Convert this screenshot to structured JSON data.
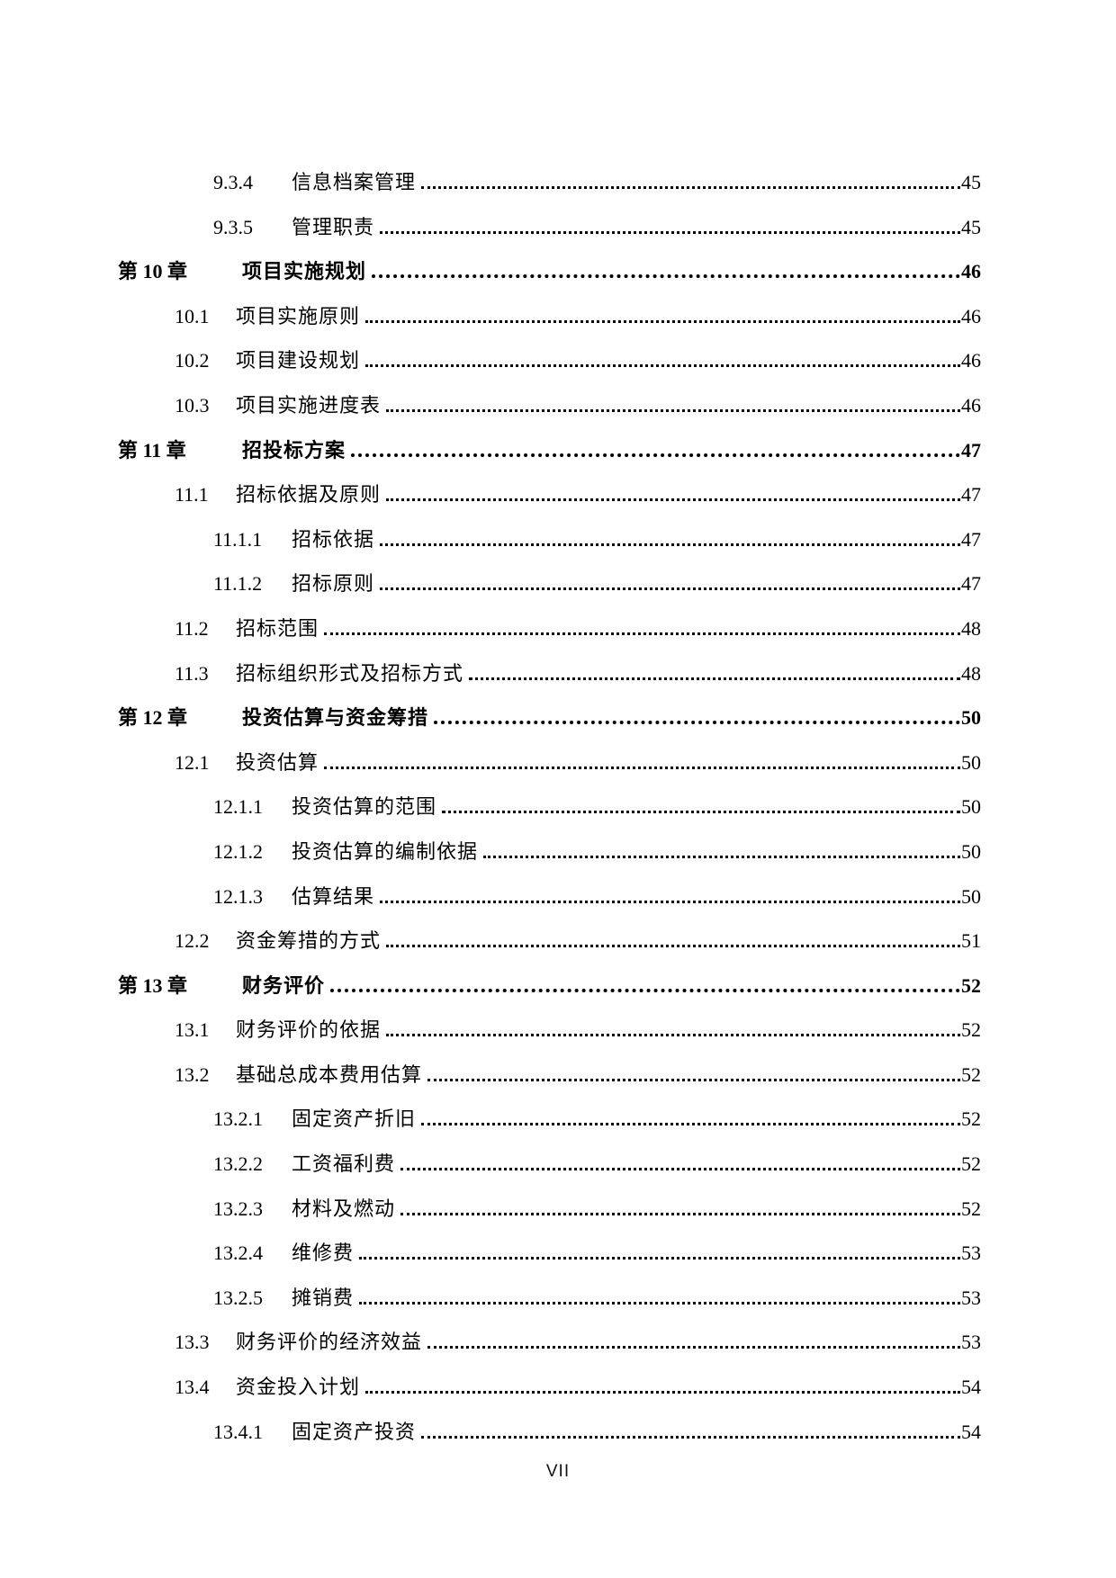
{
  "document": {
    "background_color": "#ffffff",
    "text_color": "#000000",
    "footer_page_label": "VII"
  },
  "toc": {
    "entries": [
      {
        "level": 3,
        "num": "9.3.4",
        "title": "信息档案管理",
        "page": "45"
      },
      {
        "level": 3,
        "num": "9.3.5",
        "title": "管理职责",
        "page": "45"
      },
      {
        "level": 1,
        "num": "第 10 章",
        "title": "项目实施规划",
        "page": "46"
      },
      {
        "level": 2,
        "num": "10.1",
        "title": "项目实施原则",
        "page": "46"
      },
      {
        "level": 2,
        "num": "10.2",
        "title": "项目建设规划",
        "page": "46"
      },
      {
        "level": 2,
        "num": "10.3",
        "title": "项目实施进度表",
        "page": "46"
      },
      {
        "level": 1,
        "num": "第 11 章",
        "title": "招投标方案",
        "page": "47"
      },
      {
        "level": 2,
        "num": "11.1",
        "title": "招标依据及原则",
        "page": "47"
      },
      {
        "level": 3,
        "num": "11.1.1",
        "title": "招标依据",
        "page": "47"
      },
      {
        "level": 3,
        "num": "11.1.2",
        "title": "招标原则",
        "page": "47"
      },
      {
        "level": 2,
        "num": "11.2",
        "title": "招标范围",
        "page": "48"
      },
      {
        "level": 2,
        "num": "11.3",
        "title": "招标组织形式及招标方式",
        "page": "48"
      },
      {
        "level": 1,
        "num": "第 12 章",
        "title": "投资估算与资金筹措",
        "page": "50"
      },
      {
        "level": 2,
        "num": "12.1",
        "title": "投资估算",
        "page": "50"
      },
      {
        "level": 3,
        "num": "12.1.1",
        "title": "投资估算的范围",
        "page": "50"
      },
      {
        "level": 3,
        "num": "12.1.2",
        "title": "投资估算的编制依据",
        "page": "50"
      },
      {
        "level": 3,
        "num": "12.1.3",
        "title": "估算结果",
        "page": "50"
      },
      {
        "level": 2,
        "num": "12.2",
        "title": "资金筹措的方式",
        "page": "51"
      },
      {
        "level": 1,
        "num": "第 13 章",
        "title": "财务评价",
        "page": "52"
      },
      {
        "level": 2,
        "num": "13.1",
        "title": "财务评价的依据",
        "page": "52"
      },
      {
        "level": 2,
        "num": "13.2",
        "title": "基础总成本费用估算",
        "page": "52"
      },
      {
        "level": 3,
        "num": "13.2.1",
        "title": "固定资产折旧",
        "page": "52"
      },
      {
        "level": 3,
        "num": "13.2.2",
        "title": "工资福利费",
        "page": "52"
      },
      {
        "level": 3,
        "num": "13.2.3",
        "title": "材料及燃动",
        "page": "52"
      },
      {
        "level": 3,
        "num": "13.2.4",
        "title": "维修费",
        "page": "53"
      },
      {
        "level": 3,
        "num": "13.2.5",
        "title": "摊销费",
        "page": "53"
      },
      {
        "level": 2,
        "num": "13.3",
        "title": "财务评价的经济效益",
        "page": "53"
      },
      {
        "level": 2,
        "num": "13.4",
        "title": "资金投入计划",
        "page": "54"
      },
      {
        "level": 3,
        "num": "13.4.1",
        "title": "固定资产投资",
        "page": "54"
      }
    ]
  }
}
